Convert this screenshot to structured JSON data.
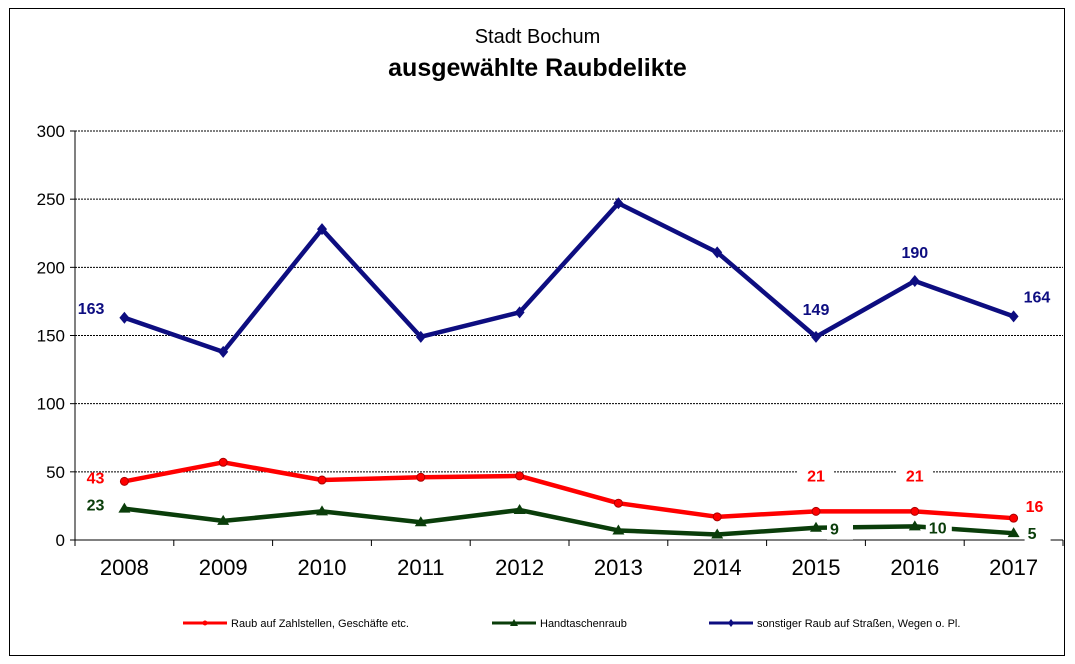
{
  "chart_data": {
    "type": "line",
    "title": "Stadt Bochum",
    "subtitle": "ausgewählte Raubdelikte",
    "categories": [
      "2008",
      "2009",
      "2010",
      "2011",
      "2012",
      "2013",
      "2014",
      "2015",
      "2016",
      "2017"
    ],
    "ylim": [
      0,
      300
    ],
    "yticks": [
      0,
      50,
      100,
      150,
      200,
      250,
      300
    ],
    "grid": true,
    "legend_position": "bottom",
    "series": [
      {
        "name": "Raub auf Zahlstellen, Geschäfte etc.",
        "color": "#ff0000",
        "marker": "circle",
        "values": [
          43,
          57,
          44,
          46,
          47,
          27,
          17,
          21,
          21,
          16
        ],
        "labels": {
          "0": "43",
          "7": "21",
          "8": "21",
          "9": "16"
        }
      },
      {
        "name": "Handtaschenraub",
        "color": "#0a3d0a",
        "marker": "triangle",
        "values": [
          23,
          14,
          21,
          13,
          22,
          7,
          4,
          9,
          10,
          5
        ],
        "labels": {
          "0": "23",
          "7": "9",
          "8": "10",
          "9": "5"
        }
      },
      {
        "name": "sonstiger Raub auf Straßen, Wegen o. Pl.",
        "color": "#0d0d80",
        "marker": "diamond",
        "values": [
          163,
          138,
          228,
          149,
          167,
          247,
          211,
          149,
          190,
          164
        ],
        "labels": {
          "0": "163",
          "7": "149",
          "8": "190",
          "9": "164"
        }
      }
    ]
  }
}
